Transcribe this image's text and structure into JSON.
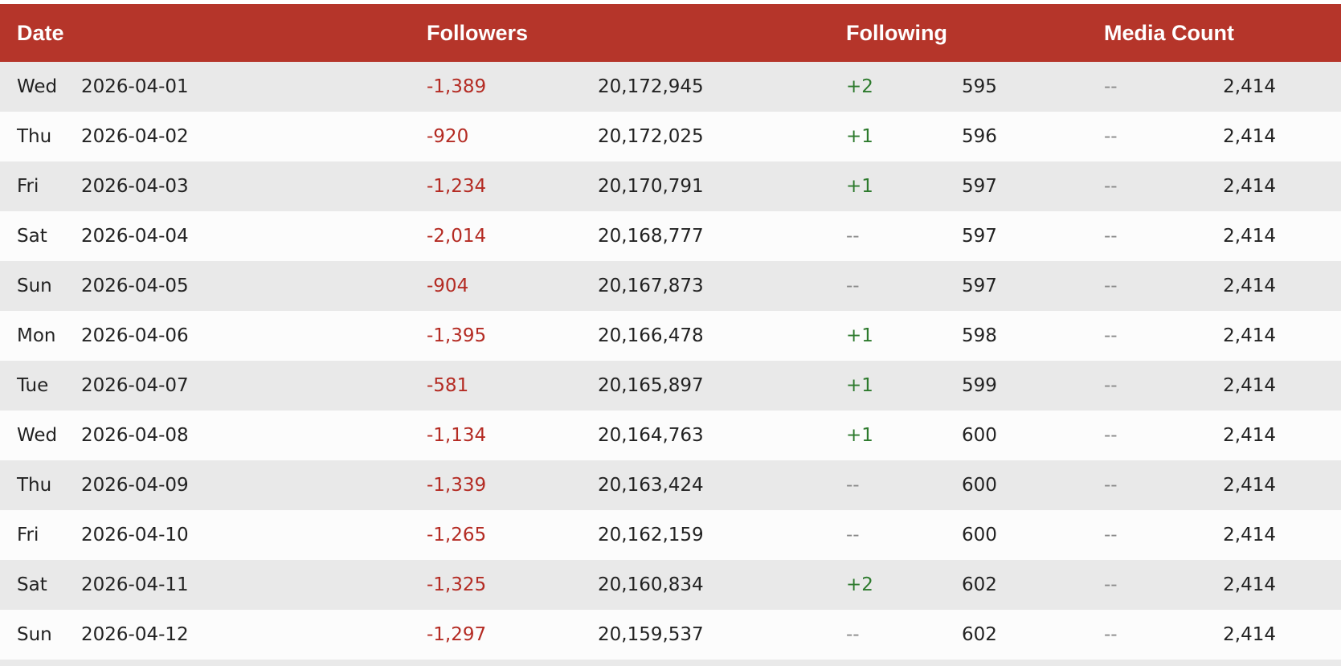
{
  "colors": {
    "header_bg": "#b5352a",
    "negative": "#b42b23",
    "positive": "#2d7a2d",
    "neutral": "#8a8a8a",
    "row_alt": "#e9e9e9"
  },
  "header": {
    "date": "Date",
    "followers": "Followers",
    "following": "Following",
    "media_count": "Media Count"
  },
  "rows": [
    {
      "day": "Wed",
      "date": "2026-04-01",
      "followers_delta": "-1,389",
      "followers": "20,172,945",
      "following_delta": "+2",
      "following": "595",
      "media_delta": "--",
      "media": "2,414"
    },
    {
      "day": "Thu",
      "date": "2026-04-02",
      "followers_delta": "-920",
      "followers": "20,172,025",
      "following_delta": "+1",
      "following": "596",
      "media_delta": "--",
      "media": "2,414"
    },
    {
      "day": "Fri",
      "date": "2026-04-03",
      "followers_delta": "-1,234",
      "followers": "20,170,791",
      "following_delta": "+1",
      "following": "597",
      "media_delta": "--",
      "media": "2,414"
    },
    {
      "day": "Sat",
      "date": "2026-04-04",
      "followers_delta": "-2,014",
      "followers": "20,168,777",
      "following_delta": "--",
      "following": "597",
      "media_delta": "--",
      "media": "2,414"
    },
    {
      "day": "Sun",
      "date": "2026-04-05",
      "followers_delta": "-904",
      "followers": "20,167,873",
      "following_delta": "--",
      "following": "597",
      "media_delta": "--",
      "media": "2,414"
    },
    {
      "day": "Mon",
      "date": "2026-04-06",
      "followers_delta": "-1,395",
      "followers": "20,166,478",
      "following_delta": "+1",
      "following": "598",
      "media_delta": "--",
      "media": "2,414"
    },
    {
      "day": "Tue",
      "date": "2026-04-07",
      "followers_delta": "-581",
      "followers": "20,165,897",
      "following_delta": "+1",
      "following": "599",
      "media_delta": "--",
      "media": "2,414"
    },
    {
      "day": "Wed",
      "date": "2026-04-08",
      "followers_delta": "-1,134",
      "followers": "20,164,763",
      "following_delta": "+1",
      "following": "600",
      "media_delta": "--",
      "media": "2,414"
    },
    {
      "day": "Thu",
      "date": "2026-04-09",
      "followers_delta": "-1,339",
      "followers": "20,163,424",
      "following_delta": "--",
      "following": "600",
      "media_delta": "--",
      "media": "2,414"
    },
    {
      "day": "Fri",
      "date": "2026-04-10",
      "followers_delta": "-1,265",
      "followers": "20,162,159",
      "following_delta": "--",
      "following": "600",
      "media_delta": "--",
      "media": "2,414"
    },
    {
      "day": "Sat",
      "date": "2026-04-11",
      "followers_delta": "-1,325",
      "followers": "20,160,834",
      "following_delta": "+2",
      "following": "602",
      "media_delta": "--",
      "media": "2,414"
    },
    {
      "day": "Sun",
      "date": "2026-04-12",
      "followers_delta": "-1,297",
      "followers": "20,159,537",
      "following_delta": "--",
      "following": "602",
      "media_delta": "--",
      "media": "2,414"
    }
  ]
}
